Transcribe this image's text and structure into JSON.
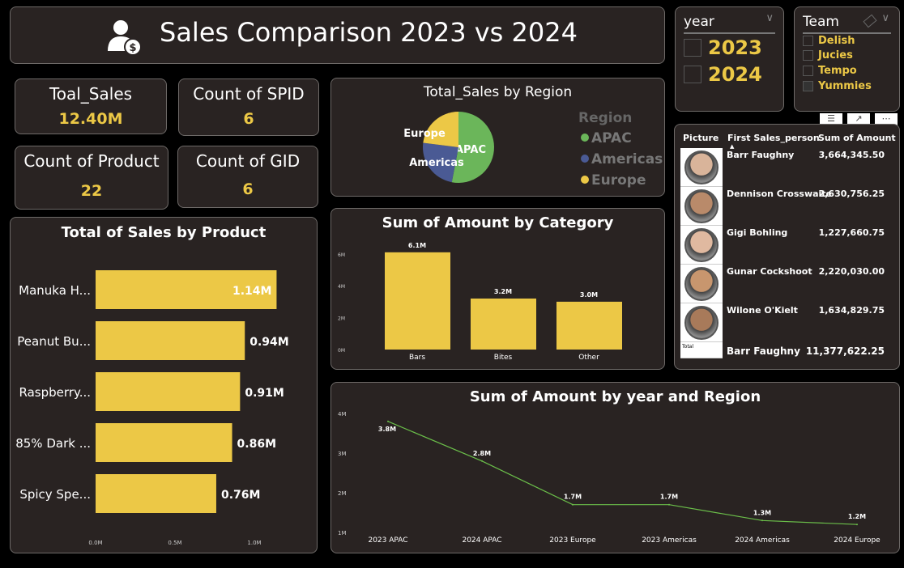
{
  "header": {
    "title": "Sales Comparison 2023 vs 2024",
    "icon": "person-dollar-icon"
  },
  "kpis": [
    {
      "label": "Toal_Sales",
      "value": "12.40M"
    },
    {
      "label": "Count of SPID",
      "value": "6"
    },
    {
      "label": "Count of Product",
      "value": "22"
    },
    {
      "label": "Count of GID",
      "value": "6"
    }
  ],
  "year_slicer": {
    "title": "year",
    "options": [
      "2023",
      "2024"
    ]
  },
  "team_slicer": {
    "title": "Team",
    "options": [
      "Delish",
      "Jucies",
      "Tempo",
      "Yummies"
    ]
  },
  "table": {
    "headers": [
      "Picture",
      "First Sales_person",
      "Sum of Amount"
    ],
    "rows": [
      {
        "name": "Barr Faughny",
        "amount": "3,664,345.50"
      },
      {
        "name": "Dennison Crosswaite",
        "amount": "2,630,756.25"
      },
      {
        "name": "Gigi Bohling",
        "amount": "1,227,660.75"
      },
      {
        "name": "Gunar Cockshoot",
        "amount": "2,220,030.00"
      },
      {
        "name": "Wilone O'Kielt",
        "amount": "1,634,829.75"
      }
    ],
    "total": {
      "label": "Total",
      "name": "Barr Faughny",
      "amount": "11,377,622.25"
    }
  },
  "colors": {
    "accent": "#ecc846",
    "apac": "#6bb65a",
    "americas": "#4a5a94",
    "europe": "#ecc846",
    "line": "#6bbf4a",
    "panel": "#292322"
  },
  "chart_data": [
    {
      "type": "bar",
      "orientation": "horizontal",
      "title": "Total of Sales by Product",
      "categories": [
        "Manuka H...",
        "Peanut Bu...",
        "Raspberry...",
        "85% Dark ...",
        "Spicy Spe..."
      ],
      "values": [
        1.14,
        0.94,
        0.91,
        0.86,
        0.76
      ],
      "data_labels": [
        "1.14M",
        "0.94M",
        "0.91M",
        "0.86M",
        "0.76M"
      ],
      "ticks": [
        "0.0M",
        "0.5M",
        "1.0M"
      ],
      "xlim": [
        0,
        1.2
      ]
    },
    {
      "type": "pie",
      "title": "Total_Sales by Region",
      "legend_title": "Region",
      "legend_position": "right",
      "categories": [
        "APAC",
        "Americas",
        "Europe"
      ],
      "values": [
        0.53,
        0.24,
        0.23
      ]
    },
    {
      "type": "bar",
      "title": "Sum of Amount by Category",
      "categories": [
        "Bars",
        "Bites",
        "Other"
      ],
      "values": [
        6.1,
        3.2,
        3.0
      ],
      "data_labels": [
        "6.1M",
        "3.2M",
        "3.0M"
      ],
      "ticks": [
        "0M",
        "2M",
        "4M",
        "6M"
      ],
      "ylim": [
        0,
        6
      ]
    },
    {
      "type": "line",
      "title": "Sum of Amount by year and Region",
      "categories": [
        "2023 APAC",
        "2024 APAC",
        "2023 Europe",
        "2023 Americas",
        "2024 Americas",
        "2024 Europe"
      ],
      "values": [
        3.8,
        2.8,
        1.7,
        1.7,
        1.3,
        1.2
      ],
      "data_labels": [
        "3.8M",
        "2.8M",
        "1.7M",
        "1.7M",
        "1.3M",
        "1.2M"
      ],
      "ticks": [
        "1M",
        "2M",
        "3M",
        "4M"
      ],
      "ylim": [
        1,
        4
      ]
    }
  ]
}
